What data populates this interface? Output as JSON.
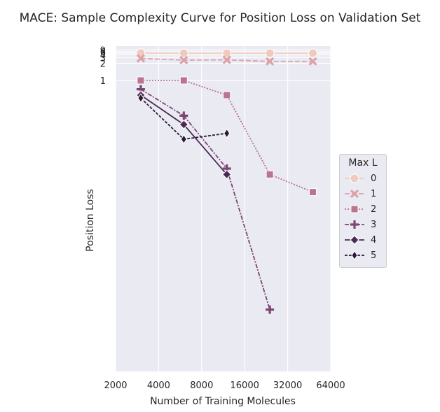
{
  "chart_data": {
    "type": "line",
    "title": "MACE: Sample Complexity Curve for Position Loss on Validation Set",
    "xlabel": "Number of Training Molecules",
    "ylabel": "Position Loss",
    "x_scale": "log2",
    "xlim": [
      2000,
      64000
    ],
    "x_ticks": [
      2000,
      4000,
      8000,
      16000,
      32000,
      64000
    ],
    "x_tick_labels": [
      "2000",
      "4000",
      "8000",
      "16000",
      "32000",
      "64000"
    ],
    "y_tick_labels_visible": [
      "9",
      "6",
      "5",
      "4",
      "3",
      "2",
      "1"
    ],
    "legend_title": "Max L",
    "legend_position": "center-right, outside plot",
    "grid": true,
    "background_color": "#eaeaf2",
    "series": [
      {
        "name": "0",
        "color": "#efcbbf",
        "marker": "circle",
        "dash": "solid",
        "x": [
          3000,
          6000,
          12000,
          24000,
          48000
        ],
        "y": [
          5.0,
          4.9,
          4.9,
          4.9,
          4.9
        ]
      },
      {
        "name": "1",
        "color": "#dba3a7",
        "marker": "x",
        "dash": "long-dash",
        "x": [
          3000,
          6000,
          12000,
          24000,
          48000
        ],
        "y": [
          2.8,
          2.45,
          2.5,
          2.25,
          2.25
        ]
      },
      {
        "name": "2",
        "color": "#b87490",
        "marker": "square",
        "dash": "dotted",
        "x": [
          3000,
          6000,
          12000,
          24000,
          48000
        ],
        "y": [
          1.0,
          1.0,
          0.95,
          0.68,
          0.62
        ]
      },
      {
        "name": "3",
        "color": "#7c4572",
        "marker": "plus",
        "dash": "dash-dot",
        "x": [
          3000,
          6000,
          12000,
          24000
        ],
        "y": [
          0.97,
          0.88,
          0.7,
          0.22
        ]
      },
      {
        "name": "4",
        "color": "#4a2a55",
        "marker": "diamond",
        "dash": "solid",
        "x": [
          3000,
          6000,
          12000
        ],
        "y": [
          0.95,
          0.85,
          0.68
        ]
      },
      {
        "name": "5",
        "color": "#2b1938",
        "marker": "thin-diamond",
        "dash": "dashed",
        "x": [
          3000,
          6000,
          12000
        ],
        "y": [
          0.94,
          0.8,
          0.82
        ]
      }
    ]
  }
}
